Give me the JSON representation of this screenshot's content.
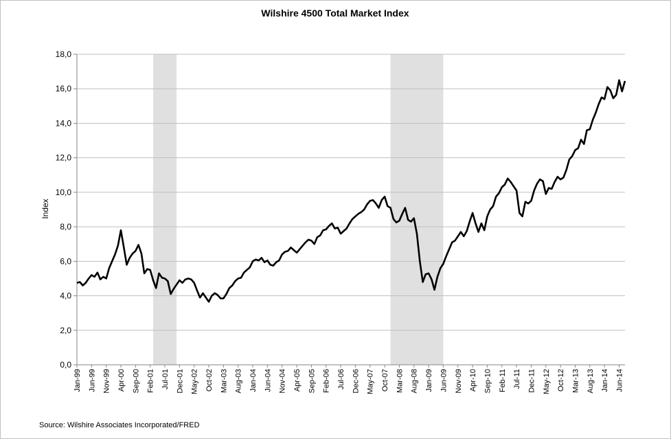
{
  "chart_data": {
    "type": "line",
    "title": "Wilshire 4500 Total Market Index",
    "ylabel": "Index",
    "xlabel": "",
    "source": "Source: Wilshire Associates Incorporated/FRED",
    "ylim": [
      0,
      18
    ],
    "y_ticks": [
      "0,0",
      "2,0",
      "4,0",
      "6,0",
      "8,0",
      "10,0",
      "12,0",
      "14,0",
      "16,0",
      "18,0"
    ],
    "x_start": "1999-01",
    "x_end": "2014-08",
    "x_ticks": [
      {
        "label": "Jan-99",
        "date": "1999-01"
      },
      {
        "label": "Jun-99",
        "date": "1999-06"
      },
      {
        "label": "Nov-99",
        "date": "1999-11"
      },
      {
        "label": "Apr-00",
        "date": "2000-04"
      },
      {
        "label": "Sep-00",
        "date": "2000-09"
      },
      {
        "label": "Feb-01",
        "date": "2001-02"
      },
      {
        "label": "Jul-01",
        "date": "2001-07"
      },
      {
        "label": "Dec-01",
        "date": "2001-12"
      },
      {
        "label": "May-02",
        "date": "2002-05"
      },
      {
        "label": "Oct-02",
        "date": "2002-10"
      },
      {
        "label": "Mar-03",
        "date": "2003-03"
      },
      {
        "label": "Aug-03",
        "date": "2003-08"
      },
      {
        "label": "Jan-04",
        "date": "2004-01"
      },
      {
        "label": "Jun-04",
        "date": "2004-06"
      },
      {
        "label": "Nov-04",
        "date": "2004-11"
      },
      {
        "label": "Apr-05",
        "date": "2005-04"
      },
      {
        "label": "Sep-05",
        "date": "2005-09"
      },
      {
        "label": "Feb-06",
        "date": "2006-02"
      },
      {
        "label": "Jul-06",
        "date": "2006-07"
      },
      {
        "label": "Dec-06",
        "date": "2006-12"
      },
      {
        "label": "May-07",
        "date": "2007-05"
      },
      {
        "label": "Oct-07",
        "date": "2007-10"
      },
      {
        "label": "Mar-08",
        "date": "2008-03"
      },
      {
        "label": "Aug-08",
        "date": "2008-08"
      },
      {
        "label": "Jan-09",
        "date": "2009-01"
      },
      {
        "label": "Jun-09",
        "date": "2009-06"
      },
      {
        "label": "Nov-09",
        "date": "2009-11"
      },
      {
        "label": "Apr-10",
        "date": "2010-04"
      },
      {
        "label": "Sep-10",
        "date": "2010-09"
      },
      {
        "label": "Feb-11",
        "date": "2011-02"
      },
      {
        "label": "Jul-11",
        "date": "2011-07"
      },
      {
        "label": "Dec-11",
        "date": "2011-12"
      },
      {
        "label": "May-12",
        "date": "2012-05"
      },
      {
        "label": "Oct-12",
        "date": "2012-10"
      },
      {
        "label": "Mar-13",
        "date": "2013-03"
      },
      {
        "label": "Aug-13",
        "date": "2013-08"
      },
      {
        "label": "Jan-14",
        "date": "2014-01"
      },
      {
        "label": "Jun-14",
        "date": "2014-06"
      }
    ],
    "recessions": [
      {
        "start": "2001-03",
        "end": "2001-11"
      },
      {
        "start": "2007-12",
        "end": "2009-06"
      }
    ],
    "series": [
      {
        "name": "Wilshire 4500 Total Market Index",
        "color": "#000000",
        "points": [
          [
            "1999-01",
            4.75
          ],
          [
            "1999-02",
            4.8
          ],
          [
            "1999-03",
            4.6
          ],
          [
            "1999-04",
            4.75
          ],
          [
            "1999-05",
            5.0
          ],
          [
            "1999-06",
            5.2
          ],
          [
            "1999-07",
            5.1
          ],
          [
            "1999-08",
            5.35
          ],
          [
            "1999-09",
            4.95
          ],
          [
            "1999-10",
            5.1
          ],
          [
            "1999-11",
            5.0
          ],
          [
            "1999-12",
            5.6
          ],
          [
            "2000-01",
            6.0
          ],
          [
            "2000-02",
            6.4
          ],
          [
            "2000-03",
            6.9
          ],
          [
            "2000-04",
            7.8
          ],
          [
            "2000-05",
            6.8
          ],
          [
            "2000-06",
            5.8
          ],
          [
            "2000-07",
            6.2
          ],
          [
            "2000-08",
            6.45
          ],
          [
            "2000-09",
            6.6
          ],
          [
            "2000-10",
            6.95
          ],
          [
            "2000-11",
            6.45
          ],
          [
            "2000-12",
            5.3
          ],
          [
            "2001-01",
            5.55
          ],
          [
            "2001-02",
            5.5
          ],
          [
            "2001-03",
            4.9
          ],
          [
            "2001-04",
            4.45
          ],
          [
            "2001-05",
            5.3
          ],
          [
            "2001-06",
            5.05
          ],
          [
            "2001-07",
            5.0
          ],
          [
            "2001-08",
            4.85
          ],
          [
            "2001-09",
            4.1
          ],
          [
            "2001-10",
            4.4
          ],
          [
            "2001-11",
            4.65
          ],
          [
            "2001-12",
            4.9
          ],
          [
            "2002-01",
            4.75
          ],
          [
            "2002-02",
            4.95
          ],
          [
            "2002-03",
            5.0
          ],
          [
            "2002-04",
            4.95
          ],
          [
            "2002-05",
            4.75
          ],
          [
            "2002-06",
            4.3
          ],
          [
            "2002-07",
            3.9
          ],
          [
            "2002-08",
            4.15
          ],
          [
            "2002-09",
            3.9
          ],
          [
            "2002-10",
            3.65
          ],
          [
            "2002-11",
            4.0
          ],
          [
            "2002-12",
            4.15
          ],
          [
            "2003-01",
            4.05
          ],
          [
            "2003-02",
            3.85
          ],
          [
            "2003-03",
            3.85
          ],
          [
            "2003-04",
            4.1
          ],
          [
            "2003-05",
            4.45
          ],
          [
            "2003-06",
            4.6
          ],
          [
            "2003-07",
            4.85
          ],
          [
            "2003-08",
            5.0
          ],
          [
            "2003-09",
            5.05
          ],
          [
            "2003-10",
            5.35
          ],
          [
            "2003-11",
            5.5
          ],
          [
            "2003-12",
            5.65
          ],
          [
            "2004-01",
            6.0
          ],
          [
            "2004-02",
            6.1
          ],
          [
            "2004-03",
            6.05
          ],
          [
            "2004-04",
            6.2
          ],
          [
            "2004-05",
            5.95
          ],
          [
            "2004-06",
            6.05
          ],
          [
            "2004-07",
            5.8
          ],
          [
            "2004-08",
            5.75
          ],
          [
            "2004-09",
            5.95
          ],
          [
            "2004-10",
            6.05
          ],
          [
            "2004-11",
            6.4
          ],
          [
            "2004-12",
            6.55
          ],
          [
            "2005-01",
            6.6
          ],
          [
            "2005-02",
            6.8
          ],
          [
            "2005-03",
            6.65
          ],
          [
            "2005-04",
            6.5
          ],
          [
            "2005-05",
            6.7
          ],
          [
            "2005-06",
            6.9
          ],
          [
            "2005-07",
            7.1
          ],
          [
            "2005-08",
            7.25
          ],
          [
            "2005-09",
            7.2
          ],
          [
            "2005-10",
            7.0
          ],
          [
            "2005-11",
            7.4
          ],
          [
            "2005-12",
            7.5
          ],
          [
            "2006-01",
            7.8
          ],
          [
            "2006-02",
            7.85
          ],
          [
            "2006-03",
            8.05
          ],
          [
            "2006-04",
            8.2
          ],
          [
            "2006-05",
            7.9
          ],
          [
            "2006-06",
            7.95
          ],
          [
            "2006-07",
            7.6
          ],
          [
            "2006-08",
            7.75
          ],
          [
            "2006-09",
            7.9
          ],
          [
            "2006-10",
            8.2
          ],
          [
            "2006-11",
            8.45
          ],
          [
            "2006-12",
            8.6
          ],
          [
            "2007-01",
            8.75
          ],
          [
            "2007-02",
            8.85
          ],
          [
            "2007-03",
            9.0
          ],
          [
            "2007-04",
            9.3
          ],
          [
            "2007-05",
            9.5
          ],
          [
            "2007-06",
            9.55
          ],
          [
            "2007-07",
            9.35
          ],
          [
            "2007-08",
            9.1
          ],
          [
            "2007-09",
            9.55
          ],
          [
            "2007-10",
            9.75
          ],
          [
            "2007-11",
            9.2
          ],
          [
            "2007-12",
            9.1
          ],
          [
            "2008-01",
            8.45
          ],
          [
            "2008-02",
            8.25
          ],
          [
            "2008-03",
            8.35
          ],
          [
            "2008-04",
            8.75
          ],
          [
            "2008-05",
            9.1
          ],
          [
            "2008-06",
            8.4
          ],
          [
            "2008-07",
            8.3
          ],
          [
            "2008-08",
            8.5
          ],
          [
            "2008-09",
            7.6
          ],
          [
            "2008-10",
            6.0
          ],
          [
            "2008-11",
            4.8
          ],
          [
            "2008-12",
            5.25
          ],
          [
            "2009-01",
            5.3
          ],
          [
            "2009-02",
            4.95
          ],
          [
            "2009-03",
            4.35
          ],
          [
            "2009-04",
            5.1
          ],
          [
            "2009-05",
            5.6
          ],
          [
            "2009-06",
            5.85
          ],
          [
            "2009-07",
            6.3
          ],
          [
            "2009-08",
            6.7
          ],
          [
            "2009-09",
            7.1
          ],
          [
            "2009-10",
            7.2
          ],
          [
            "2009-11",
            7.45
          ],
          [
            "2009-12",
            7.7
          ],
          [
            "2010-01",
            7.45
          ],
          [
            "2010-02",
            7.75
          ],
          [
            "2010-03",
            8.3
          ],
          [
            "2010-04",
            8.8
          ],
          [
            "2010-05",
            8.2
          ],
          [
            "2010-06",
            7.7
          ],
          [
            "2010-07",
            8.2
          ],
          [
            "2010-08",
            7.8
          ],
          [
            "2010-09",
            8.6
          ],
          [
            "2010-10",
            9.0
          ],
          [
            "2010-11",
            9.2
          ],
          [
            "2010-12",
            9.75
          ],
          [
            "2011-01",
            9.95
          ],
          [
            "2011-02",
            10.3
          ],
          [
            "2011-03",
            10.45
          ],
          [
            "2011-04",
            10.8
          ],
          [
            "2011-05",
            10.6
          ],
          [
            "2011-06",
            10.35
          ],
          [
            "2011-07",
            10.1
          ],
          [
            "2011-08",
            8.8
          ],
          [
            "2011-09",
            8.6
          ],
          [
            "2011-10",
            9.45
          ],
          [
            "2011-11",
            9.35
          ],
          [
            "2011-12",
            9.5
          ],
          [
            "2012-01",
            10.1
          ],
          [
            "2012-02",
            10.5
          ],
          [
            "2012-03",
            10.75
          ],
          [
            "2012-04",
            10.65
          ],
          [
            "2012-05",
            9.9
          ],
          [
            "2012-06",
            10.25
          ],
          [
            "2012-07",
            10.2
          ],
          [
            "2012-08",
            10.6
          ],
          [
            "2012-09",
            10.9
          ],
          [
            "2012-10",
            10.75
          ],
          [
            "2012-11",
            10.85
          ],
          [
            "2012-12",
            11.3
          ],
          [
            "2013-01",
            11.9
          ],
          [
            "2013-02",
            12.1
          ],
          [
            "2013-03",
            12.45
          ],
          [
            "2013-04",
            12.55
          ],
          [
            "2013-05",
            13.05
          ],
          [
            "2013-06",
            12.8
          ],
          [
            "2013-07",
            13.6
          ],
          [
            "2013-08",
            13.65
          ],
          [
            "2013-09",
            14.2
          ],
          [
            "2013-10",
            14.6
          ],
          [
            "2013-11",
            15.1
          ],
          [
            "2013-12",
            15.5
          ],
          [
            "2014-01",
            15.4
          ],
          [
            "2014-02",
            16.1
          ],
          [
            "2014-03",
            15.9
          ],
          [
            "2014-04",
            15.45
          ],
          [
            "2014-05",
            15.65
          ],
          [
            "2014-06",
            16.5
          ],
          [
            "2014-07",
            15.85
          ],
          [
            "2014-08",
            16.45
          ]
        ]
      }
    ]
  }
}
